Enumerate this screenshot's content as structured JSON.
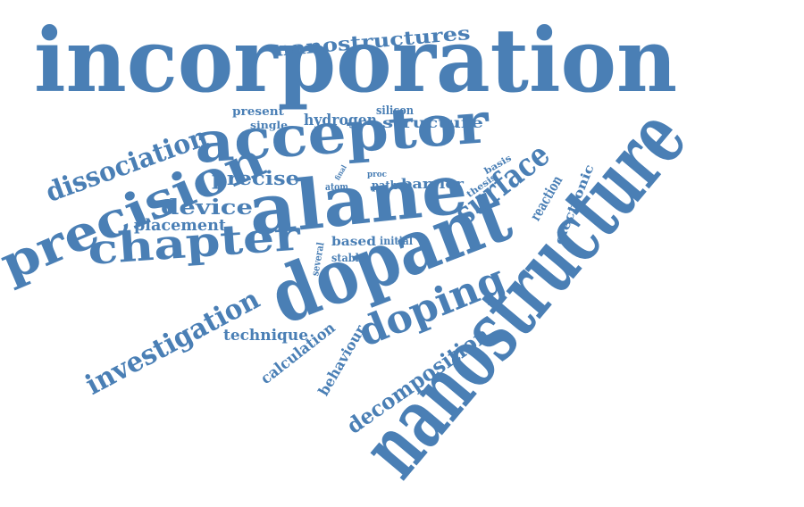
{
  "cloud": {
    "color": "#4a7fb5",
    "words": [
      {
        "text": "incorporation"
      },
      {
        "text": "nanostructure"
      },
      {
        "text": "dopant"
      },
      {
        "text": "alane"
      },
      {
        "text": "acceptor"
      },
      {
        "text": "precision"
      },
      {
        "text": "chapter"
      },
      {
        "text": "doping"
      },
      {
        "text": "surface"
      },
      {
        "text": "dissociation"
      },
      {
        "text": "investigation"
      },
      {
        "text": "decomposition"
      },
      {
        "text": "nanostructures"
      },
      {
        "text": "device"
      },
      {
        "text": "precise"
      },
      {
        "text": "placement"
      },
      {
        "text": "hydrogen"
      },
      {
        "text": "structure"
      },
      {
        "text": "reaction"
      },
      {
        "text": "electronic"
      },
      {
        "text": "technique"
      },
      {
        "text": "calculation"
      },
      {
        "text": "behaviour"
      },
      {
        "text": "present"
      },
      {
        "text": "single"
      },
      {
        "text": "silicon"
      },
      {
        "text": "barrier"
      },
      {
        "text": "path"
      },
      {
        "text": "based"
      },
      {
        "text": "stable"
      },
      {
        "text": "initial"
      },
      {
        "text": "several"
      },
      {
        "text": "atom"
      },
      {
        "text": "final"
      },
      {
        "text": "proc"
      },
      {
        "text": "thesis"
      },
      {
        "text": "basis"
      }
    ]
  }
}
